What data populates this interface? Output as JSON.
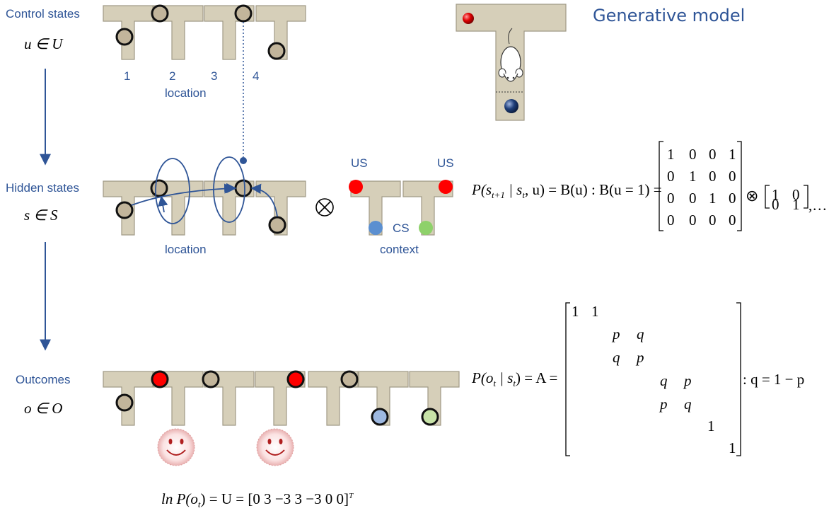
{
  "title": "Generative model",
  "rows": {
    "control": {
      "heading": "Control states",
      "set": "u ∈ U"
    },
    "hidden": {
      "heading": "Hidden states",
      "set": "s ∈ S"
    },
    "outcomes": {
      "heading": "Outcomes",
      "set": "o ∈ O"
    }
  },
  "location_numbers": [
    "1",
    "2",
    "3",
    "4"
  ],
  "location_label": "location",
  "context": {
    "us_left": "US",
    "us_right": "US",
    "cs": "CS",
    "label": "context"
  },
  "transition_eq": {
    "lhs": "P(s",
    "sub1": "t+1",
    "mid": " | s",
    "sub2": "t",
    "rhs": ", u) = B(u) : B(u = 1) =",
    "matrix_b": [
      [
        "1",
        "0",
        "0",
        "1"
      ],
      [
        "0",
        "1",
        "0",
        "0"
      ],
      [
        "0",
        "0",
        "1",
        "0"
      ],
      [
        "0",
        "0",
        "0",
        "0"
      ]
    ],
    "otimes": "⊗",
    "matrix_i": [
      [
        "1",
        "0"
      ],
      [
        "0",
        "1"
      ]
    ],
    "tail": ",…"
  },
  "likelihood_eq": {
    "lhs": "P(o",
    "sub": "t",
    "rhs": " | s",
    "sub2": "t",
    "eq": ") = A =",
    "matrix_entries": [
      "1",
      "1",
      "p",
      "q",
      "q",
      "p",
      "q",
      "p",
      "p",
      "q",
      "1",
      "1"
    ],
    "condition": ": q = 1 − p"
  },
  "utility_eq": {
    "text": "ln P(o",
    "sub": "t",
    "rest": ") = U = [0   3   −3   3   −3   0   0]",
    "sup": "T"
  },
  "colors": {
    "maze": "#d6cfb9",
    "maze_stroke": "#a09a86",
    "token": "#c2b59b",
    "red": "#ff0000",
    "blue": "#5b8fd0",
    "green": "#8ed16a",
    "arrow": "#2f5597",
    "text": "#2f5597"
  }
}
